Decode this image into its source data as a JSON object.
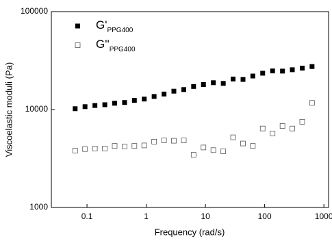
{
  "chart_data": {
    "type": "scatter",
    "x_label": "Frequency (rad/s)",
    "y_label": "Viscoelastic moduli (Pa)",
    "x_log": true,
    "y_log": true,
    "xlim": [
      0.025,
      1200
    ],
    "ylim": [
      1000,
      100000
    ],
    "xticks": [
      0.1,
      1,
      10,
      100,
      1000
    ],
    "yticks": [
      1000,
      10000,
      100000
    ],
    "x": [
      0.0631,
      0.0926,
      0.136,
      0.2,
      0.293,
      0.431,
      0.631,
      0.926,
      1.36,
      2,
      2.93,
      4.31,
      6.31,
      9.26,
      13.6,
      20,
      29.3,
      43.1,
      63.1,
      92.6,
      136,
      200,
      293,
      431,
      631
    ],
    "series": [
      {
        "name": "G'",
        "subscript": "PPG400",
        "color": "#000000",
        "filled": true,
        "values": [
          10200,
          10700,
          11000,
          11200,
          11600,
          11800,
          12400,
          12800,
          13600,
          14400,
          15400,
          16000,
          17200,
          18000,
          18800,
          18500,
          20500,
          20300,
          22000,
          23500,
          24800,
          24700,
          25500,
          26500,
          27500
        ]
      },
      {
        "name": "G''",
        "subscript": "PPG400",
        "color": "#555555",
        "filled": false,
        "values": [
          3800,
          3950,
          4000,
          4000,
          4250,
          4200,
          4250,
          4300,
          4700,
          4850,
          4800,
          4850,
          3450,
          4100,
          3850,
          3750,
          5200,
          4500,
          4250,
          6400,
          5700,
          6800,
          6400,
          7500,
          11700
        ]
      }
    ]
  }
}
